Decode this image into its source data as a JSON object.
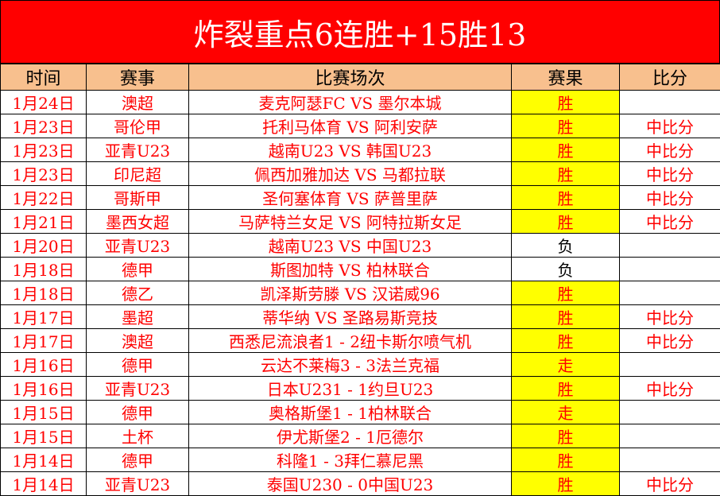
{
  "title": "炸裂重点6连胜+15胜13",
  "headers": [
    "时间",
    "赛事",
    "比赛场次",
    "赛果",
    "比分"
  ],
  "rows": [
    {
      "date": "1月24日",
      "league": "澳超",
      "match": "麦克阿瑟FC VS 墨尔本城",
      "result": "胜",
      "score": ""
    },
    {
      "date": "1月23日",
      "league": "哥伦甲",
      "match": "托利马体育 VS 阿利安萨",
      "result": "胜",
      "score": "中比分"
    },
    {
      "date": "1月23日",
      "league": "亚青U23",
      "match": "越南U23 VS 韩国U23",
      "result": "胜",
      "score": "中比分"
    },
    {
      "date": "1月23日",
      "league": "印尼超",
      "match": "佩西加雅加达 VS 马都拉联",
      "result": "胜",
      "score": "中比分"
    },
    {
      "date": "1月22日",
      "league": "哥斯甲",
      "match": "圣何塞体育 VS 萨普里萨",
      "result": "胜",
      "score": "中比分"
    },
    {
      "date": "1月21日",
      "league": "墨西女超",
      "match": "马萨特兰女足 VS 阿特拉斯女足",
      "result": "胜",
      "score": "中比分"
    },
    {
      "date": "1月20日",
      "league": "亚青U23",
      "match": "越南U23 VS 中国U23",
      "result": "负",
      "score": ""
    },
    {
      "date": "1月18日",
      "league": "德甲",
      "match": "斯图加特 VS 柏林联合",
      "result": "负",
      "score": ""
    },
    {
      "date": "1月18日",
      "league": "德乙",
      "match": "凯泽斯劳滕 VS 汉诺威96",
      "result": "胜",
      "score": ""
    },
    {
      "date": "1月17日",
      "league": "墨超",
      "match": "蒂华纳 VS 圣路易斯竞技",
      "result": "胜",
      "score": "中比分"
    },
    {
      "date": "1月17日",
      "league": "澳超",
      "match": "西悉尼流浪者1 - 2纽卡斯尔喷气机",
      "result": "胜",
      "score": "中比分"
    },
    {
      "date": "1月16日",
      "league": "德甲",
      "match": "云达不莱梅3 - 3法兰克福",
      "result": "走",
      "score": ""
    },
    {
      "date": "1月16日",
      "league": "亚青U23",
      "match": "日本U231 - 1约旦U23",
      "result": "胜",
      "score": "中比分"
    },
    {
      "date": "1月15日",
      "league": "德甲",
      "match": "奥格斯堡1 - 1柏林联合",
      "result": "走",
      "score": ""
    },
    {
      "date": "1月15日",
      "league": "土杯",
      "match": "伊尤斯堡2 - 1厄德尔",
      "result": "胜",
      "score": ""
    },
    {
      "date": "1月14日",
      "league": "德甲",
      "match": "科隆1 - 3拜仁慕尼黑",
      "result": "胜",
      "score": ""
    },
    {
      "date": "1月14日",
      "league": "亚青U23",
      "match": "泰国U230 - 0中国U23",
      "result": "胜",
      "score": "中比分"
    }
  ],
  "colors": {
    "title_bg": "#ff0000",
    "header_bg": "#f8c08e",
    "highlight": "#ffff00",
    "text": "#ff0000"
  }
}
